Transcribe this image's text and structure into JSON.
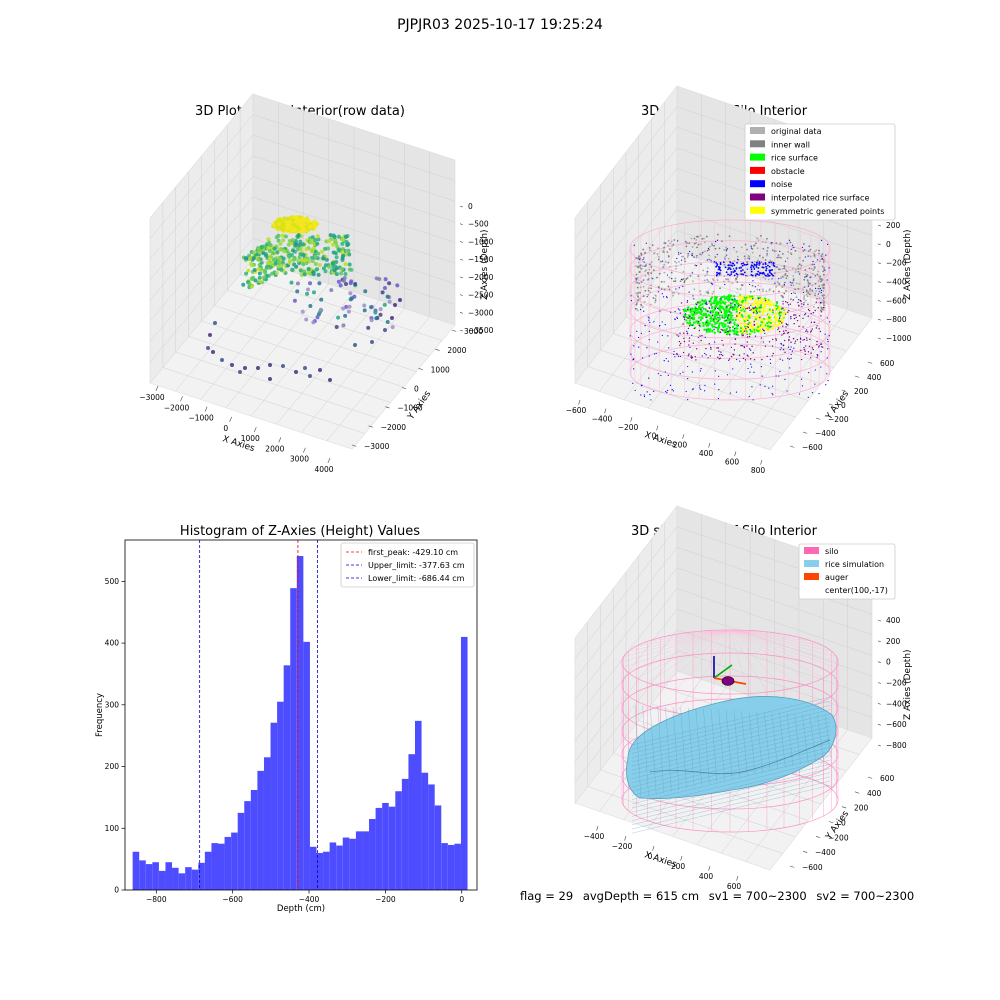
{
  "figure": {
    "suptitle": "PJPJR03 2025-10-17 19:25:24",
    "footer": {
      "flag": "flag = 29",
      "avg_depth": "avgDepth = 615 cm",
      "sv1": "sv1 = 700~2300",
      "sv2": "sv2 = 700~2300"
    }
  },
  "colors": {
    "histogram_bar": "#4d4dff",
    "first_peak_line": "#ff0000",
    "limit_lines": "#0000cc",
    "original": "#b0b0b0",
    "inner_wall": "#808080",
    "rice_surface": "#00ff00",
    "obstacle": "#ff0000",
    "noise": "#0000ff",
    "interpolated": "#800080",
    "symmetric": "#ffff00",
    "silo": "#ff69b4",
    "rice_sim": "#87ceeb",
    "auger": "#ff4500"
  },
  "chart_data": [
    {
      "id": "raw",
      "type": "scatter",
      "title": "3D Plot of Silo Interior(row data)",
      "xlabel": "X Axies",
      "ylabel": "Y Axies",
      "zlabel": "Z Axies (Depth)",
      "x_ticks": [
        "−3000",
        "−2000",
        "−1000",
        "0",
        "1000",
        "2000",
        "3000",
        "4000"
      ],
      "y_ticks": [
        "−3000",
        "−2000",
        "−1000",
        "0",
        "1000",
        "2000",
        "3000"
      ],
      "z_ticks": [
        "0",
        "−500",
        "−1000",
        "−1500",
        "−2000",
        "−2500",
        "−3000",
        "−3500"
      ],
      "grid": true
    },
    {
      "id": "classify",
      "type": "scatter",
      "title": "3D classify of Silo Interior",
      "xlabel": "X Axies",
      "ylabel": "Y Axies",
      "zlabel": "Z Axies (Depth)",
      "x_ticks": [
        "−600",
        "−400",
        "−200",
        "0",
        "200",
        "400",
        "600",
        "800"
      ],
      "y_ticks": [
        "−600",
        "−400",
        "−200",
        "0",
        "200",
        "400",
        "600"
      ],
      "z_ticks": [
        "200",
        "0",
        "−200",
        "−400",
        "−600",
        "−800",
        "−1000"
      ],
      "legend_position": "top-right",
      "legend": [
        {
          "label": "original data",
          "color": "#b0b0b0"
        },
        {
          "label": "inner wall",
          "color": "#808080"
        },
        {
          "label": "rice surface",
          "color": "#00ff00"
        },
        {
          "label": "obstacle",
          "color": "#ff0000"
        },
        {
          "label": "noise",
          "color": "#0000ff"
        },
        {
          "label": "interpolated rice surface",
          "color": "#800080"
        },
        {
          "label": "symmetric generated points",
          "color": "#ffff00"
        }
      ],
      "grid": true
    },
    {
      "id": "histogram",
      "type": "bar",
      "title": "Histogram of Z-Axies (Height) Values",
      "xlabel": "Depth (cm)",
      "ylabel": "Frequency",
      "xlim": [
        -882,
        40
      ],
      "ylim": [
        0,
        567
      ],
      "x_ticks": [
        -800,
        -600,
        -400,
        -200,
        0
      ],
      "x_tick_labels": [
        "−800",
        "−600",
        "−400",
        "−200",
        "0"
      ],
      "y_ticks": [
        0,
        100,
        200,
        300,
        400,
        500
      ],
      "y_tick_labels": [
        "0",
        "100",
        "200",
        "300",
        "400",
        "500"
      ],
      "bin_start": -862,
      "bin_width": 17.2,
      "values": [
        62,
        48,
        42,
        45,
        31,
        45,
        36,
        27,
        37,
        33,
        44,
        62,
        76,
        75,
        86,
        93,
        125,
        144,
        162,
        193,
        215,
        271,
        305,
        364,
        489,
        541,
        402,
        70,
        60,
        62,
        77,
        72,
        85,
        83,
        95,
        95,
        115,
        133,
        141,
        135,
        160,
        180,
        220,
        274,
        190,
        171,
        137,
        76,
        73,
        75,
        410
      ],
      "lines": [
        {
          "label": "first_peak: -429.10 cm",
          "value": -429.1,
          "style": "red-dashed"
        },
        {
          "label": "Upper_limit: -377.63 cm",
          "value": -377.63,
          "style": "blue-dashed"
        },
        {
          "label": "Lower_limit: -686.44 cm",
          "value": -686.44,
          "style": "blue-dashed"
        }
      ],
      "legend_position": "top-right",
      "grid": false
    },
    {
      "id": "simulation",
      "type": "area",
      "title": "3D simulation of Silo Interior",
      "xlabel": "X Axies",
      "ylabel": "Y Axies",
      "zlabel": "Z Axies (Depth)",
      "x_ticks": [
        "−400",
        "−200",
        "0",
        "200",
        "400",
        "600"
      ],
      "y_ticks": [
        "−600",
        "−400",
        "−200",
        "0",
        "200",
        "400",
        "600"
      ],
      "z_ticks": [
        "400",
        "200",
        "0",
        "−200",
        "−400",
        "−600",
        "−800"
      ],
      "legend_position": "top-right",
      "legend": [
        {
          "label": "silo",
          "color": "#ff69b4"
        },
        {
          "label": "rice simulation",
          "color": "#87ceeb"
        },
        {
          "label": "auger",
          "color": "#ff4500"
        },
        {
          "label": "center(100,-17)",
          "color": ""
        }
      ],
      "grid": true
    }
  ]
}
